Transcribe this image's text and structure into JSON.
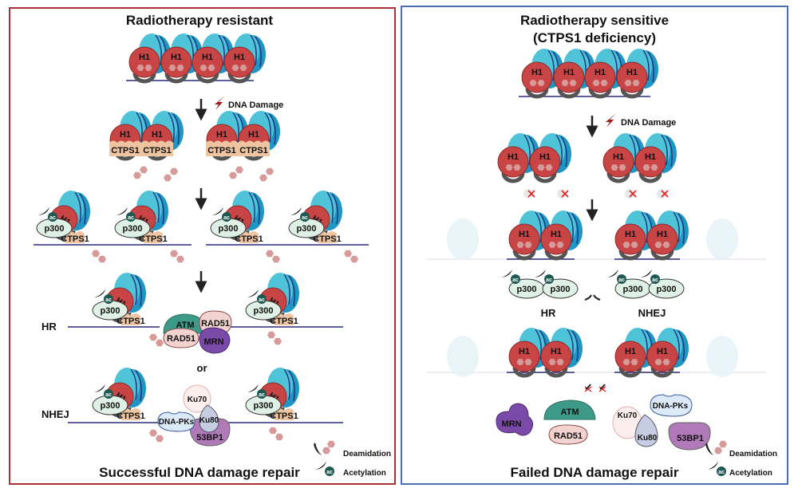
{
  "left_panel": {
    "title": "Radiotherapy resistant",
    "damage_label": "DNA Damage",
    "hr_label": "HR",
    "or_label": "or",
    "nhej_label": "NHEJ",
    "outcome": "Successful DNA damage repair",
    "border_color": "#a83238"
  },
  "right_panel": {
    "title_line1": "Radiotherapy sensitive",
    "title_line2": "(CTPS1 deficiency)",
    "damage_label": "DNA Damage",
    "hr_label": "HR",
    "nhej_label": "NHEJ",
    "outcome": "Failed DNA damage repair",
    "border_color": "#4a6fb5"
  },
  "molecules": {
    "h1": "H1",
    "ctps1": "CTPS1",
    "p300": "p300",
    "ac": "ac",
    "atm": "ATM",
    "rad51": "RAD51",
    "mrn": "MRN",
    "ku70": "Ku70",
    "ku80": "Ku80",
    "dnapks": "DNA-PKs",
    "bp53": "53BP1"
  },
  "legend": {
    "deamidation": "Deamidation",
    "acetylation": "Acetylation"
  },
  "colors": {
    "h1": "#c94444",
    "histone_core": "#2aa9cf",
    "ctps1": "#efc4a0",
    "p300": "#dff0e6",
    "ac": "#1f5a52",
    "deamidation_hex": "#d69a98",
    "atm": "#3e9a88",
    "rad51": "#f2d3d0",
    "mrn": "#7a4aa8",
    "dnapks": "#dce9f7",
    "ku80": "#c6cde3",
    "bp53": "#b07ab8",
    "dna": "#2b2a7a"
  }
}
